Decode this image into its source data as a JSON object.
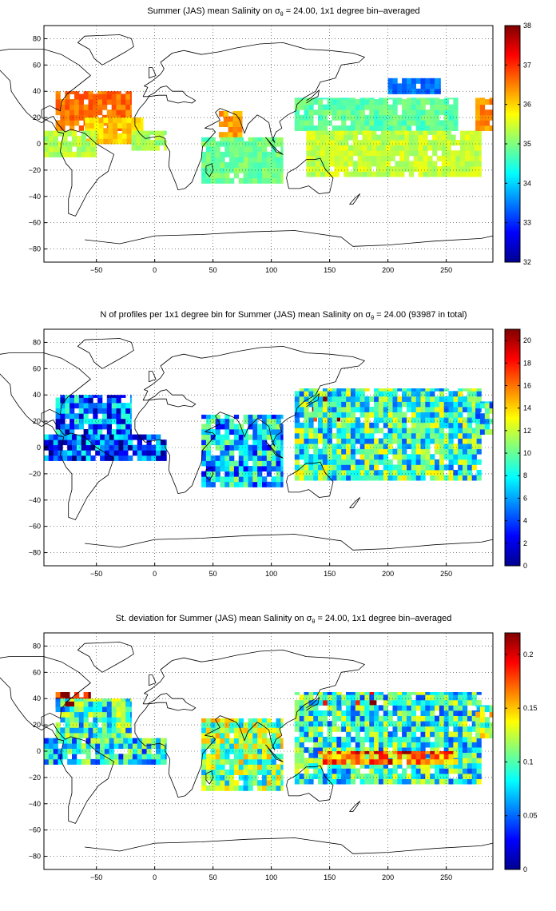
{
  "chart_data": [
    {
      "type": "heatmap",
      "title_main": "Summer (JAS) mean Salinity on σ",
      "title_sub": "θ",
      "title_rest": " = 24.00, 1x1 degree bin–averaged",
      "xlim": [
        -95,
        290
      ],
      "ylim": [
        -90,
        90
      ],
      "x_ticks": [
        -50,
        0,
        50,
        100,
        150,
        200,
        250
      ],
      "x_tick_labels": [
        "−50",
        "0",
        "50",
        "100",
        "150",
        "200",
        "250"
      ],
      "y_ticks": [
        80,
        60,
        40,
        20,
        0,
        -20,
        -40,
        -60,
        -80
      ],
      "y_tick_labels": [
        "80",
        "60",
        "40",
        "20",
        "0",
        "−20",
        "−40",
        "−60",
        "−80"
      ],
      "colorbar": {
        "min": 32,
        "max": 38,
        "ticks": [
          32,
          33,
          34,
          35,
          36,
          37,
          38
        ],
        "tick_labels": [
          "32",
          "33",
          "34",
          "35",
          "36",
          "37",
          "38"
        ]
      },
      "grid": true,
      "regions": [
        {
          "lon": [
            -85,
            -20
          ],
          "lat": [
            10,
            40
          ],
          "value": 36.6
        },
        {
          "lon": [
            -60,
            -10
          ],
          "lat": [
            0,
            20
          ],
          "value": 36.0
        },
        {
          "lon": [
            -95,
            -50
          ],
          "lat": [
            -10,
            10
          ],
          "value": 35.3
        },
        {
          "lon": [
            -20,
            10
          ],
          "lat": [
            -5,
            10
          ],
          "value": 35.2
        },
        {
          "lon": [
            55,
            75
          ],
          "lat": [
            5,
            25
          ],
          "value": 36.3
        },
        {
          "lon": [
            40,
            110
          ],
          "lat": [
            -30,
            5
          ],
          "value": 34.9
        },
        {
          "lon": [
            120,
            260
          ],
          "lat": [
            10,
            35
          ],
          "value": 34.8
        },
        {
          "lon": [
            200,
            245
          ],
          "lat": [
            38,
            50
          ],
          "value": 33.4
        },
        {
          "lon": [
            130,
            280
          ],
          "lat": [
            -25,
            10
          ],
          "value": 35.4
        },
        {
          "lon": [
            275,
            290
          ],
          "lat": [
            10,
            35
          ],
          "value": 36.4
        }
      ]
    },
    {
      "type": "heatmap",
      "title_main": "N of profiles per 1x1 degree bin for Summer (JAS) mean Salinity on σ",
      "title_sub": "θ",
      "title_rest": " = 24.00 (93987 in total)",
      "xlim": [
        -95,
        290
      ],
      "ylim": [
        -90,
        90
      ],
      "x_ticks": [
        -50,
        0,
        50,
        100,
        150,
        200,
        250
      ],
      "x_tick_labels": [
        "−50",
        "0",
        "50",
        "100",
        "150",
        "200",
        "250"
      ],
      "y_ticks": [
        80,
        60,
        40,
        20,
        0,
        -20,
        -40,
        -60,
        -80
      ],
      "y_tick_labels": [
        "80",
        "60",
        "40",
        "20",
        "0",
        "−20",
        "−40",
        "−60",
        "−80"
      ],
      "colorbar": {
        "min": 0,
        "max": 21,
        "ticks": [
          0,
          2,
          4,
          6,
          8,
          10,
          12,
          14,
          16,
          18,
          20
        ],
        "tick_labels": [
          "0",
          "2",
          "4",
          "6",
          "8",
          "10",
          "12",
          "14",
          "16",
          "18",
          "20"
        ]
      },
      "grid": true,
      "regions": [
        {
          "lon": [
            -85,
            -20
          ],
          "lat": [
            10,
            40
          ],
          "value": 5
        },
        {
          "lon": [
            -95,
            10
          ],
          "lat": [
            -10,
            10
          ],
          "value": 4
        },
        {
          "lon": [
            40,
            110
          ],
          "lat": [
            -30,
            25
          ],
          "value": 7
        },
        {
          "lon": [
            135,
            170
          ],
          "lat": [
            20,
            40
          ],
          "value": 19
        },
        {
          "lon": [
            120,
            280
          ],
          "lat": [
            -25,
            45
          ],
          "value": 9
        },
        {
          "lon": [
            275,
            290
          ],
          "lat": [
            10,
            35
          ],
          "value": 8
        }
      ]
    },
    {
      "type": "heatmap",
      "title_main": "St. deviation for Summer (JAS) mean Salinity on σ",
      "title_sub": "θ",
      "title_rest": " = 24.00, 1x1 degree bin–averaged",
      "xlim": [
        -95,
        290
      ],
      "ylim": [
        -90,
        90
      ],
      "x_ticks": [
        -50,
        0,
        50,
        100,
        150,
        200,
        250
      ],
      "x_tick_labels": [
        "−50",
        "0",
        "50",
        "100",
        "150",
        "200",
        "250"
      ],
      "y_ticks": [
        80,
        60,
        40,
        20,
        0,
        -20,
        -40,
        -60,
        -80
      ],
      "y_tick_labels": [
        "80",
        "60",
        "40",
        "20",
        "0",
        "−20",
        "−40",
        "−60",
        "−80"
      ],
      "colorbar": {
        "min": 0,
        "max": 0.22,
        "ticks": [
          0,
          0.05,
          0.1,
          0.15,
          0.2
        ],
        "tick_labels": [
          "0",
          "0.05",
          "0.1",
          "0.15",
          "0.2"
        ]
      },
      "grid": true,
      "regions": [
        {
          "lon": [
            -85,
            -55
          ],
          "lat": [
            33,
            45
          ],
          "value": 0.21
        },
        {
          "lon": [
            -85,
            -20
          ],
          "lat": [
            10,
            40
          ],
          "value": 0.09
        },
        {
          "lon": [
            -95,
            10
          ],
          "lat": [
            -10,
            10
          ],
          "value": 0.08
        },
        {
          "lon": [
            40,
            110
          ],
          "lat": [
            -30,
            25
          ],
          "value": 0.11
        },
        {
          "lon": [
            140,
            190
          ],
          "lat": [
            35,
            45
          ],
          "value": 0.2
        },
        {
          "lon": [
            120,
            280
          ],
          "lat": [
            -25,
            45
          ],
          "value": 0.09
        },
        {
          "lon": [
            140,
            260
          ],
          "lat": [
            -10,
            0
          ],
          "value": 0.17
        },
        {
          "lon": [
            275,
            290
          ],
          "lat": [
            10,
            35
          ],
          "value": 0.12
        }
      ]
    }
  ]
}
